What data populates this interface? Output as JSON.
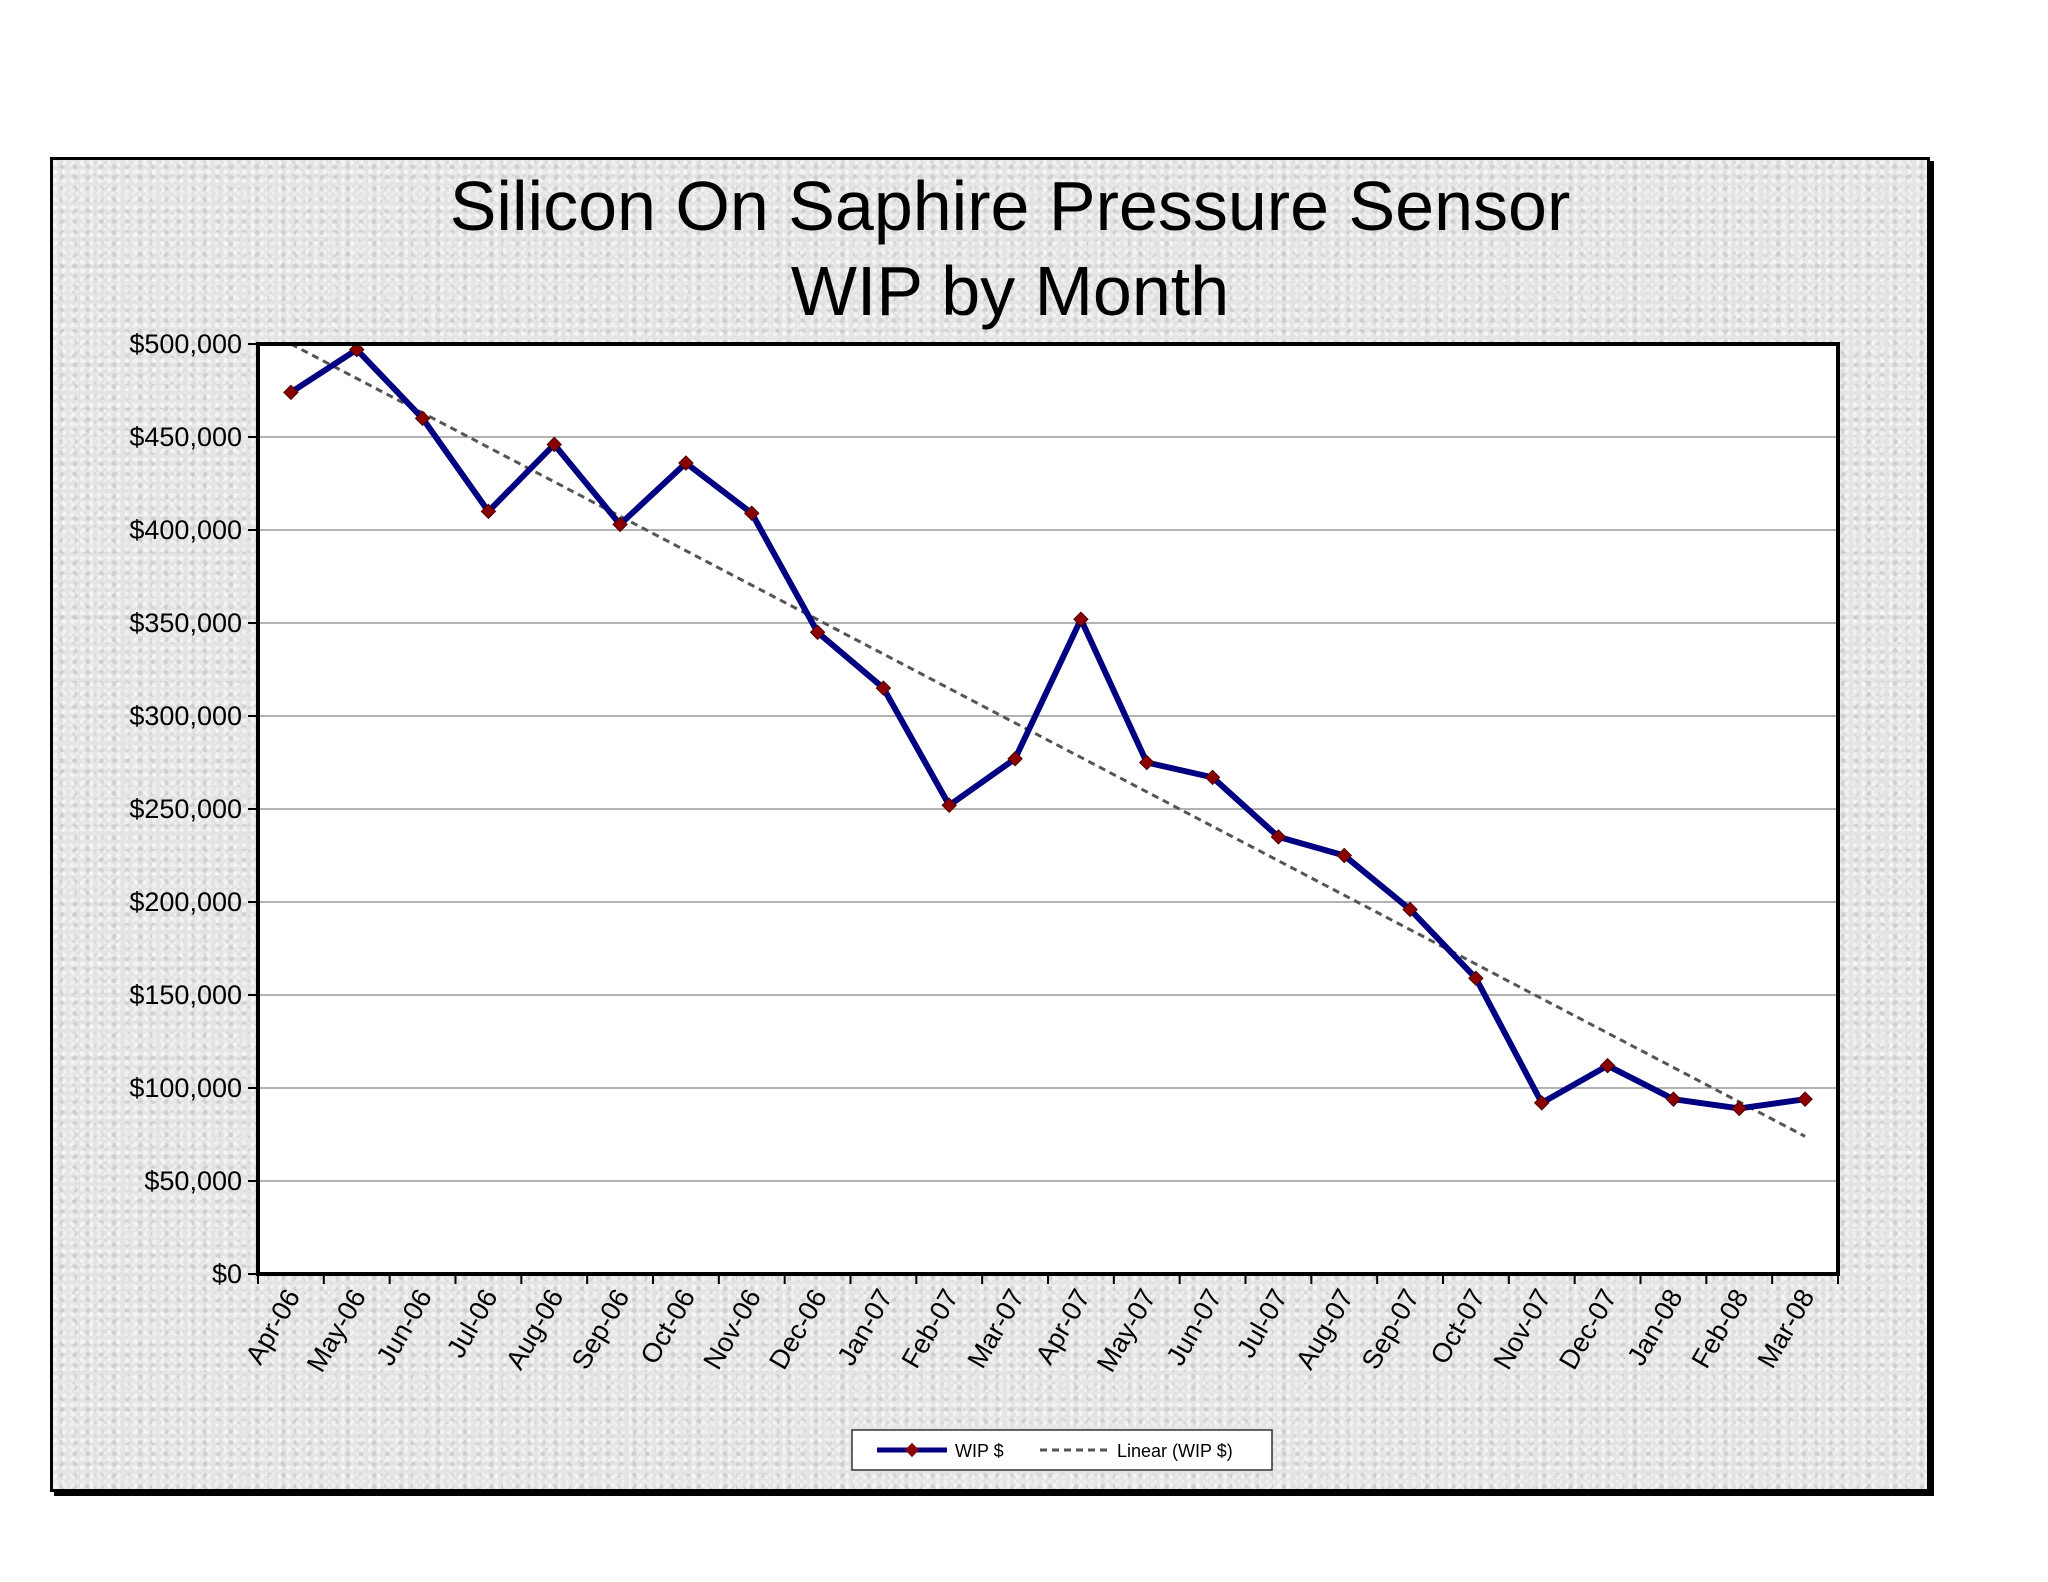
{
  "chart_data": {
    "type": "line",
    "title": "Silicon On Saphire Pressure Sensor",
    "subtitle": "WIP by Month",
    "xlabel": "",
    "ylabel": "",
    "categories": [
      "Apr-06",
      "May-06",
      "Jun-06",
      "Jul-06",
      "Aug-06",
      "Sep-06",
      "Oct-06",
      "Nov-06",
      "Dec-06",
      "Jan-07",
      "Feb-07",
      "Mar-07",
      "Apr-07",
      "May-07",
      "Jun-07",
      "Jul-07",
      "Aug-07",
      "Sep-07",
      "Oct-07",
      "Nov-07",
      "Dec-07",
      "Jan-08",
      "Feb-08",
      "Mar-08"
    ],
    "series": [
      {
        "name": "WIP $",
        "color": "#000080",
        "marker_color": "#8b0000",
        "values": [
          474000,
          497000,
          460000,
          410000,
          446000,
          403000,
          436000,
          409000,
          345000,
          315000,
          252000,
          277000,
          352000,
          275000,
          267000,
          235000,
          225000,
          196000,
          159000,
          92000,
          112000,
          94000,
          89000,
          94000
        ]
      }
    ],
    "trendline": {
      "name": "Linear (WIP $)",
      "type": "linear",
      "color": "#555555",
      "start": 500000,
      "end": 74000
    },
    "ylim": [
      0,
      500000
    ],
    "yticks": [
      0,
      50000,
      100000,
      150000,
      200000,
      250000,
      300000,
      350000,
      400000,
      450000,
      500000
    ],
    "ytick_labels": [
      "$0",
      "$50,000",
      "$100,000",
      "$150,000",
      "$200,000",
      "$250,000",
      "$300,000",
      "$350,000",
      "$400,000",
      "$450,000",
      "$500,000"
    ],
    "grid": true,
    "legend_position": "bottom"
  }
}
